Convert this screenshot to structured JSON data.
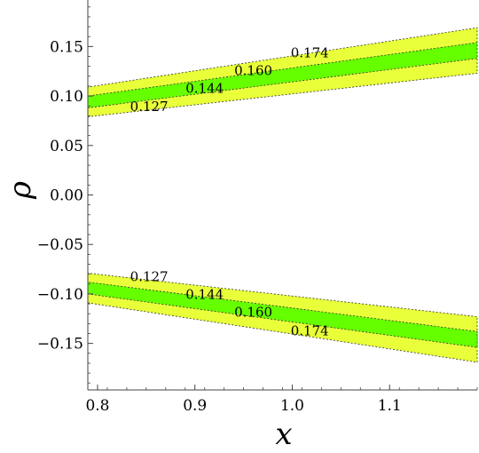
{
  "chart_data": {
    "type": "area",
    "xlabel": "x",
    "ylabel": "ρ",
    "xlim": [
      0.79,
      1.19
    ],
    "ylim": [
      -0.197,
      0.197
    ],
    "x_ticks": [
      {
        "value": 0.8,
        "label": "0.8"
      },
      {
        "value": 0.9,
        "label": "0.9"
      },
      {
        "value": 1.0,
        "label": "1.0"
      },
      {
        "value": 1.1,
        "label": "1.1"
      }
    ],
    "y_ticks": [
      {
        "value": 0.15,
        "label": "0.15"
      },
      {
        "value": 0.1,
        "label": "0.10"
      },
      {
        "value": 0.05,
        "label": "0.05"
      },
      {
        "value": 0.0,
        "label": "0.00"
      },
      {
        "value": -0.05,
        "label": "−0.05"
      },
      {
        "value": -0.1,
        "label": "−0.10"
      },
      {
        "value": -0.15,
        "label": "−0.15"
      }
    ],
    "bands": [
      {
        "name": "outer",
        "color": "#e8ff3a",
        "x": [
          0.79,
          1.19
        ],
        "upper_lower": [
          0.079,
          0.123
        ],
        "upper_upper": [
          0.109,
          0.169
        ],
        "lower_lower": [
          -0.109,
          -0.169
        ],
        "lower_upper": [
          -0.079,
          -0.123
        ]
      },
      {
        "name": "inner",
        "color": "#66ff00",
        "x": [
          0.79,
          1.19
        ],
        "upper_lower": [
          0.088,
          0.138
        ],
        "upper_upper": [
          0.1,
          0.154
        ],
        "lower_lower": [
          -0.1,
          -0.154
        ],
        "lower_upper": [
          -0.088,
          -0.138
        ]
      }
    ],
    "contour_labels": [
      {
        "text": "0.174",
        "x": 1.018,
        "y": 0.139
      },
      {
        "text": "0.160",
        "x": 0.96,
        "y": 0.121
      },
      {
        "text": "0.144",
        "x": 0.91,
        "y": 0.103
      },
      {
        "text": "0.127",
        "x": 0.853,
        "y": 0.085
      },
      {
        "text": "0.127",
        "x": 0.853,
        "y": -0.087
      },
      {
        "text": "0.144",
        "x": 0.91,
        "y": -0.105
      },
      {
        "text": "0.160",
        "x": 0.96,
        "y": -0.123
      },
      {
        "text": "0.174",
        "x": 1.018,
        "y": -0.142
      }
    ],
    "grid": false
  }
}
